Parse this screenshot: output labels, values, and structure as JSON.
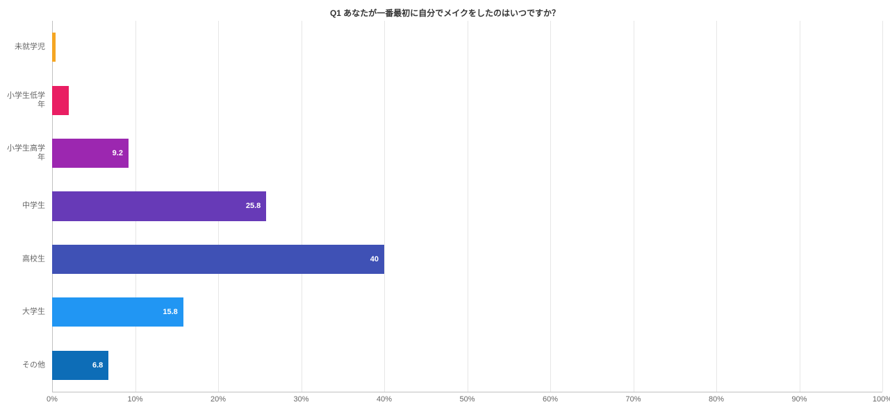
{
  "chart": {
    "type": "bar-horizontal",
    "title": "Q1 あなたが一番最初に自分でメイクをしたのはいつですか？",
    "title_fontsize": 12,
    "title_color": "#333333",
    "background_color": "#ffffff",
    "grid_color": "#e6e6e6",
    "axis_color": "#c0c0c0",
    "label_color": "#666666",
    "label_fontsize": 11,
    "value_label_fontsize": 11,
    "value_label_inside_color": "#ffffff",
    "value_label_threshold": 5,
    "xlim": [
      0,
      100
    ],
    "xtick_step": 10,
    "xtick_suffix": "%",
    "bar_height_ratio": 0.55,
    "categories": [
      {
        "label": "未就学児",
        "value": 0.4,
        "color": "#f5a623"
      },
      {
        "label": "小学生低学年",
        "value": 2.0,
        "color": "#e91e63"
      },
      {
        "label": "小学生高学年",
        "value": 9.2,
        "color": "#9c27b0"
      },
      {
        "label": "中学生",
        "value": 25.8,
        "color": "#673ab7"
      },
      {
        "label": "高校生",
        "value": 40,
        "color": "#3f51b5"
      },
      {
        "label": "大学生",
        "value": 15.8,
        "color": "#2196f3"
      },
      {
        "label": "その他",
        "value": 6.8,
        "color": "#0d6db7"
      }
    ]
  }
}
